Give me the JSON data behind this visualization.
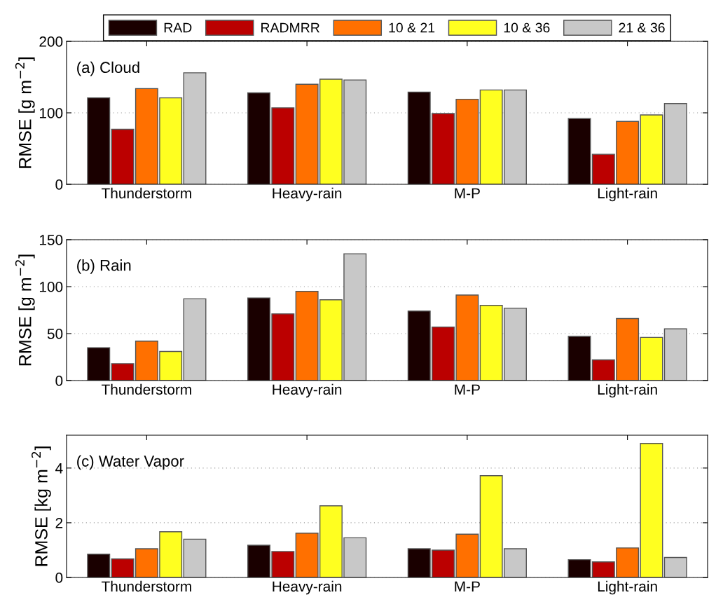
{
  "chart_data": [
    {
      "type": "bar",
      "title": "(a) Cloud",
      "ylabel": "RMSE [g m$^{−2}$]",
      "categories": [
        "Thunderstorm",
        "Heavy-rain",
        "M-P",
        "Light-rain"
      ],
      "ylim": [
        0,
        200
      ],
      "yticks": [
        0,
        100,
        200
      ],
      "grid": "y",
      "legend": "top",
      "series": [
        {
          "name": "RAD",
          "color": "#1a0000",
          "values": [
            121,
            128,
            129,
            92
          ]
        },
        {
          "name": "RADMRR",
          "color": "#bb0000",
          "values": [
            77,
            107,
            99,
            42
          ]
        },
        {
          "name": "10 & 21",
          "color": "#ff7000",
          "values": [
            134,
            140,
            119,
            88
          ]
        },
        {
          "name": "10 & 36",
          "color": "#ffff20",
          "values": [
            121,
            147,
            132,
            97
          ]
        },
        {
          "name": "21 & 36",
          "color": "#c8c8c8",
          "values": [
            156,
            146,
            132,
            113
          ]
        }
      ]
    },
    {
      "type": "bar",
      "title": "(b) Rain",
      "ylabel": "RMSE [g m$^{−2}$]",
      "categories": [
        "Thunderstorm",
        "Heavy-rain",
        "M-P",
        "Light-rain"
      ],
      "ylim": [
        0,
        150
      ],
      "yticks": [
        0,
        50,
        100,
        150
      ],
      "grid": "y",
      "series": [
        {
          "color": "#1a0000",
          "values": [
            35,
            88,
            74,
            47
          ]
        },
        {
          "color": "#bb0000",
          "values": [
            18,
            71,
            57,
            22
          ]
        },
        {
          "color": "#ff7000",
          "values": [
            42,
            95,
            91,
            66
          ]
        },
        {
          "color": "#ffff20",
          "values": [
            31,
            86,
            80,
            46
          ]
        },
        {
          "color": "#c8c8c8",
          "values": [
            87,
            135,
            77,
            55
          ]
        }
      ]
    },
    {
      "type": "bar",
      "title": "(c) Water Vapor",
      "ylabel": "RMSE [kg m$^{−2}$]",
      "categories": [
        "Thunderstorm",
        "Heavy-rain",
        "M-P",
        "Light-rain"
      ],
      "ylim": [
        0,
        5.2
      ],
      "yticks": [
        0,
        2,
        4
      ],
      "grid": "y",
      "series": [
        {
          "color": "#1a0000",
          "values": [
            0.85,
            1.18,
            1.05,
            0.65
          ]
        },
        {
          "color": "#bb0000",
          "values": [
            0.68,
            0.95,
            1.0,
            0.57
          ]
        },
        {
          "color": "#ff7000",
          "values": [
            1.05,
            1.62,
            1.58,
            1.08
          ]
        },
        {
          "color": "#ffff20",
          "values": [
            1.67,
            2.62,
            3.72,
            4.9
          ]
        },
        {
          "color": "#c8c8c8",
          "values": [
            1.4,
            1.45,
            1.05,
            0.73
          ]
        }
      ]
    }
  ]
}
